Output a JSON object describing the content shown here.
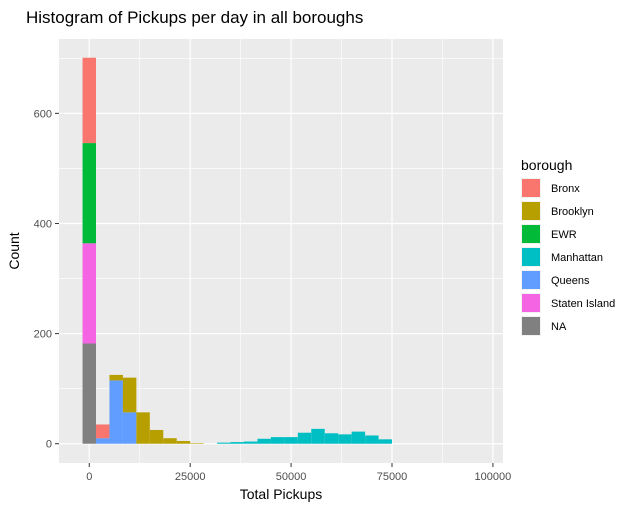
{
  "chart_data": {
    "type": "bar",
    "subtype": "stacked-histogram",
    "title": "Histogram of Pickups per day in all boroughs",
    "xlabel": "Total Pickups",
    "ylabel": "Count",
    "xlim": [
      -7500,
      102500
    ],
    "ylim": [
      -35,
      735
    ],
    "bin_width": 3333,
    "x_ticks": [
      0,
      25000,
      50000,
      75000,
      100000
    ],
    "x_tick_labels": [
      "0",
      "25000",
      "50000",
      "75000",
      "100000"
    ],
    "y_ticks": [
      0,
      200,
      400,
      600
    ],
    "y_tick_labels": [
      "0",
      "200",
      "400",
      "600"
    ],
    "grid": true,
    "legend": {
      "title": "borough",
      "position": "right"
    },
    "bins": [
      {
        "x": 0,
        "Bronx": 155,
        "Brooklyn": 0,
        "EWR": 182,
        "Manhattan": 0,
        "Queens": 0,
        "Staten Island": 182,
        "NA": 182
      },
      {
        "x": 3333,
        "Bronx": 25,
        "Brooklyn": 0,
        "EWR": 0,
        "Manhattan": 0,
        "Queens": 10,
        "Staten Island": 0,
        "NA": 0
      },
      {
        "x": 6667,
        "Bronx": 0,
        "Brooklyn": 10,
        "EWR": 0,
        "Manhattan": 0,
        "Queens": 115,
        "Staten Island": 0,
        "NA": 0
      },
      {
        "x": 10000,
        "Bronx": 0,
        "Brooklyn": 63,
        "EWR": 0,
        "Manhattan": 0,
        "Queens": 57,
        "Staten Island": 0,
        "NA": 0
      },
      {
        "x": 13333,
        "Bronx": 0,
        "Brooklyn": 57,
        "EWR": 0,
        "Manhattan": 0,
        "Queens": 0,
        "Staten Island": 0,
        "NA": 0
      },
      {
        "x": 16667,
        "Bronx": 0,
        "Brooklyn": 25,
        "EWR": 0,
        "Manhattan": 0,
        "Queens": 0,
        "Staten Island": 0,
        "NA": 0
      },
      {
        "x": 20000,
        "Bronx": 0,
        "Brooklyn": 10,
        "EWR": 0,
        "Manhattan": 0,
        "Queens": 0,
        "Staten Island": 0,
        "NA": 0
      },
      {
        "x": 23333,
        "Bronx": 0,
        "Brooklyn": 5,
        "EWR": 0,
        "Manhattan": 0,
        "Queens": 0,
        "Staten Island": 0,
        "NA": 0
      },
      {
        "x": 26667,
        "Bronx": 0,
        "Brooklyn": 1,
        "EWR": 0,
        "Manhattan": 0,
        "Queens": 0,
        "Staten Island": 0,
        "NA": 0
      },
      {
        "x": 30000,
        "Bronx": 0,
        "Brooklyn": 0,
        "EWR": 0,
        "Manhattan": 0,
        "Queens": 0,
        "Staten Island": 0,
        "NA": 0
      },
      {
        "x": 33333,
        "Bronx": 0,
        "Brooklyn": 0,
        "EWR": 0,
        "Manhattan": 2,
        "Queens": 0,
        "Staten Island": 0,
        "NA": 0
      },
      {
        "x": 36667,
        "Bronx": 0,
        "Brooklyn": 0,
        "EWR": 0,
        "Manhattan": 3,
        "Queens": 0,
        "Staten Island": 0,
        "NA": 0
      },
      {
        "x": 40000,
        "Bronx": 0,
        "Brooklyn": 0,
        "EWR": 0,
        "Manhattan": 4,
        "Queens": 0,
        "Staten Island": 0,
        "NA": 0
      },
      {
        "x": 43333,
        "Bronx": 0,
        "Brooklyn": 0,
        "EWR": 0,
        "Manhattan": 9,
        "Queens": 0,
        "Staten Island": 0,
        "NA": 0
      },
      {
        "x": 46667,
        "Bronx": 0,
        "Brooklyn": 0,
        "EWR": 0,
        "Manhattan": 12,
        "Queens": 0,
        "Staten Island": 0,
        "NA": 0
      },
      {
        "x": 50000,
        "Bronx": 0,
        "Brooklyn": 0,
        "EWR": 0,
        "Manhattan": 12,
        "Queens": 0,
        "Staten Island": 0,
        "NA": 0
      },
      {
        "x": 53333,
        "Bronx": 0,
        "Brooklyn": 0,
        "EWR": 0,
        "Manhattan": 20,
        "Queens": 0,
        "Staten Island": 0,
        "NA": 0
      },
      {
        "x": 56667,
        "Bronx": 0,
        "Brooklyn": 0,
        "EWR": 0,
        "Manhattan": 27,
        "Queens": 0,
        "Staten Island": 0,
        "NA": 0
      },
      {
        "x": 60000,
        "Bronx": 0,
        "Brooklyn": 0,
        "EWR": 0,
        "Manhattan": 19,
        "Queens": 0,
        "Staten Island": 0,
        "NA": 0
      },
      {
        "x": 63333,
        "Bronx": 0,
        "Brooklyn": 0,
        "EWR": 0,
        "Manhattan": 17,
        "Queens": 0,
        "Staten Island": 0,
        "NA": 0
      },
      {
        "x": 66667,
        "Bronx": 0,
        "Brooklyn": 0,
        "EWR": 0,
        "Manhattan": 22,
        "Queens": 0,
        "Staten Island": 0,
        "NA": 0
      },
      {
        "x": 70000,
        "Bronx": 0,
        "Brooklyn": 0,
        "EWR": 0,
        "Manhattan": 15,
        "Queens": 0,
        "Staten Island": 0,
        "NA": 0
      },
      {
        "x": 73333,
        "Bronx": 0,
        "Brooklyn": 0,
        "EWR": 0,
        "Manhattan": 8,
        "Queens": 0,
        "Staten Island": 0,
        "NA": 0
      }
    ],
    "series": [
      {
        "name": "Bronx",
        "color": "#F8766D"
      },
      {
        "name": "Brooklyn",
        "color": "#B79F00"
      },
      {
        "name": "EWR",
        "color": "#00BA38"
      },
      {
        "name": "Manhattan",
        "color": "#00BFC4"
      },
      {
        "name": "Queens",
        "color": "#619CFF"
      },
      {
        "name": "Staten Island",
        "color": "#F564E3"
      },
      {
        "name": "NA",
        "color": "#808080"
      }
    ],
    "stack_order_bottom_to_top": [
      "NA",
      "Staten Island",
      "Queens",
      "Manhattan",
      "EWR",
      "Brooklyn",
      "Bronx"
    ],
    "panel_color": "#EBEBEB"
  }
}
